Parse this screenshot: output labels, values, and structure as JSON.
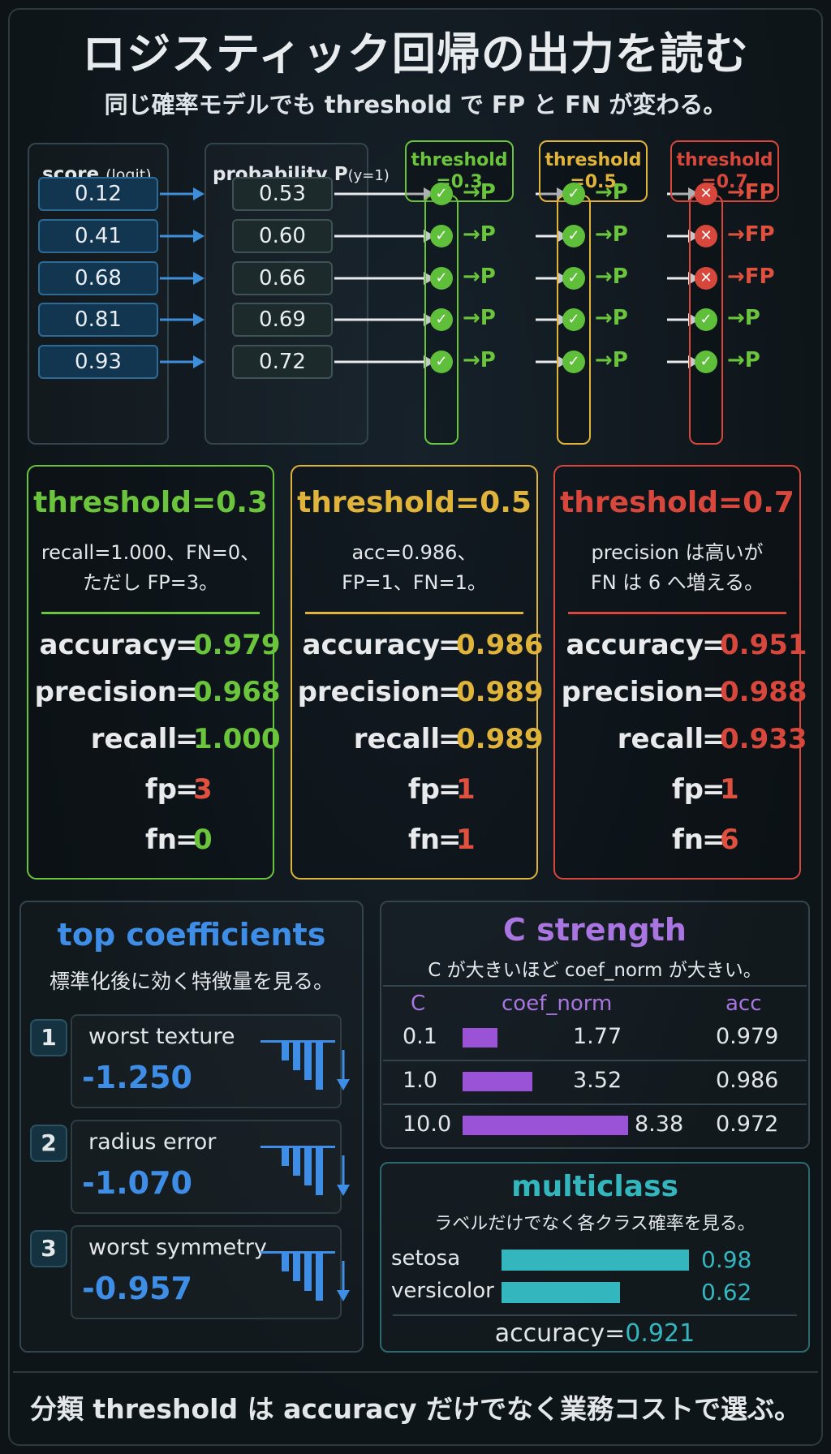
{
  "title": "ロジスティック回帰の出力を読む",
  "subtitle": "同じ確率モデルでも threshold で FP と FN が変わる。",
  "diagram": {
    "score_header": "score",
    "score_header_sub": "(logit)",
    "prob_header": "probability P",
    "prob_header_sub": "(y=1)",
    "scores": [
      "0.12",
      "0.41",
      "0.68",
      "0.81",
      "0.93"
    ],
    "probs": [
      "0.53",
      "0.60",
      "0.66",
      "0.69",
      "0.72"
    ],
    "thresholds": [
      {
        "label1": "threshold",
        "label2": "=0.3",
        "color": "#6bc53c",
        "marks": [
          "ok",
          "ok",
          "ok",
          "ok",
          "ok"
        ],
        "results": [
          "P",
          "P",
          "P",
          "P",
          "P"
        ]
      },
      {
        "label1": "threshold",
        "label2": "=0.5",
        "color": "#e0b43a",
        "marks": [
          "ok",
          "ok",
          "ok",
          "ok",
          "ok"
        ],
        "results": [
          "P",
          "P",
          "P",
          "P",
          "P"
        ]
      },
      {
        "label1": "threshold",
        "label2": "=0.7",
        "color": "#d8473c",
        "marks": [
          "ng",
          "ng",
          "ng",
          "ok",
          "ok"
        ],
        "results": [
          "FP",
          "FP",
          "FP",
          "P",
          "P"
        ]
      }
    ],
    "ok_glyph": "✓",
    "ng_glyph": "✕",
    "arrow_glyph": "→"
  },
  "cards": [
    {
      "heading": "threshold=0.3",
      "desc": "recall=1.000、FN=0、\nただし FP=3。",
      "color": "#6bc53c",
      "accuracy": "0.979",
      "precision": "0.968",
      "recall": "1.000",
      "fp": "3",
      "fn": "0",
      "fp_color": "#e0503f",
      "fn_color": "#6bc53c"
    },
    {
      "heading": "threshold=0.5",
      "desc": "acc=0.986、\nFP=1、FN=1。",
      "color": "#e0b43a",
      "accuracy": "0.986",
      "precision": "0.989",
      "recall": "0.989",
      "fp": "1",
      "fn": "1",
      "fp_color": "#e0503f",
      "fn_color": "#e0503f"
    },
    {
      "heading": "threshold=0.7",
      "desc": "precision は高いが\nFN は 6 へ増える。",
      "color": "#d8473c",
      "accuracy": "0.951",
      "precision": "0.988",
      "recall": "0.933",
      "fp": "1",
      "fn": "6",
      "fp_color": "#e0503f",
      "fn_color": "#e0503f"
    }
  ],
  "metric_labels": {
    "accuracy": "accuracy",
    "precision": "precision",
    "recall": "recall",
    "fp": "fp",
    "fn": "fn",
    "eq": "="
  },
  "coefficients": {
    "title": "top coefficients",
    "subtitle": "標準化後に効く特徴量を見る。",
    "items": [
      {
        "rank": "1",
        "name": "worst texture",
        "value": "-1.250"
      },
      {
        "rank": "2",
        "name": "radius error",
        "value": "-1.070"
      },
      {
        "rank": "3",
        "name": "worst symmetry",
        "value": "-0.957"
      }
    ]
  },
  "c_strength": {
    "title": "C strength",
    "subtitle": "C が大きいほど coef_norm が大きい。",
    "headers": [
      "C",
      "coef_norm",
      "acc"
    ],
    "rows": [
      {
        "c": "0.1",
        "coef_norm": "1.77",
        "acc": "0.979",
        "norm_value": 1.77
      },
      {
        "c": "1.0",
        "coef_norm": "3.52",
        "acc": "0.986",
        "norm_value": 3.52
      },
      {
        "c": "10.0",
        "coef_norm": "8.38",
        "acc": "0.972",
        "norm_value": 8.38
      }
    ],
    "bar_color": "#9a52d6"
  },
  "multiclass": {
    "title": "multiclass",
    "subtitle": "ラベルだけでなく各クラス確率を見る。",
    "rows": [
      {
        "label": "setosa",
        "value": "0.98",
        "fraction": 0.98
      },
      {
        "label": "versicolor",
        "value": "0.62",
        "fraction": 0.62
      }
    ],
    "accuracy_label": "accuracy=",
    "accuracy_value": "0.921"
  },
  "footer": "分類 threshold は accuracy だけでなく業務コストで選ぶ。",
  "colors": {
    "coef_blue": "#3e8ee8",
    "c_purple": "#a975e0",
    "multi_teal": "#33b6be"
  }
}
